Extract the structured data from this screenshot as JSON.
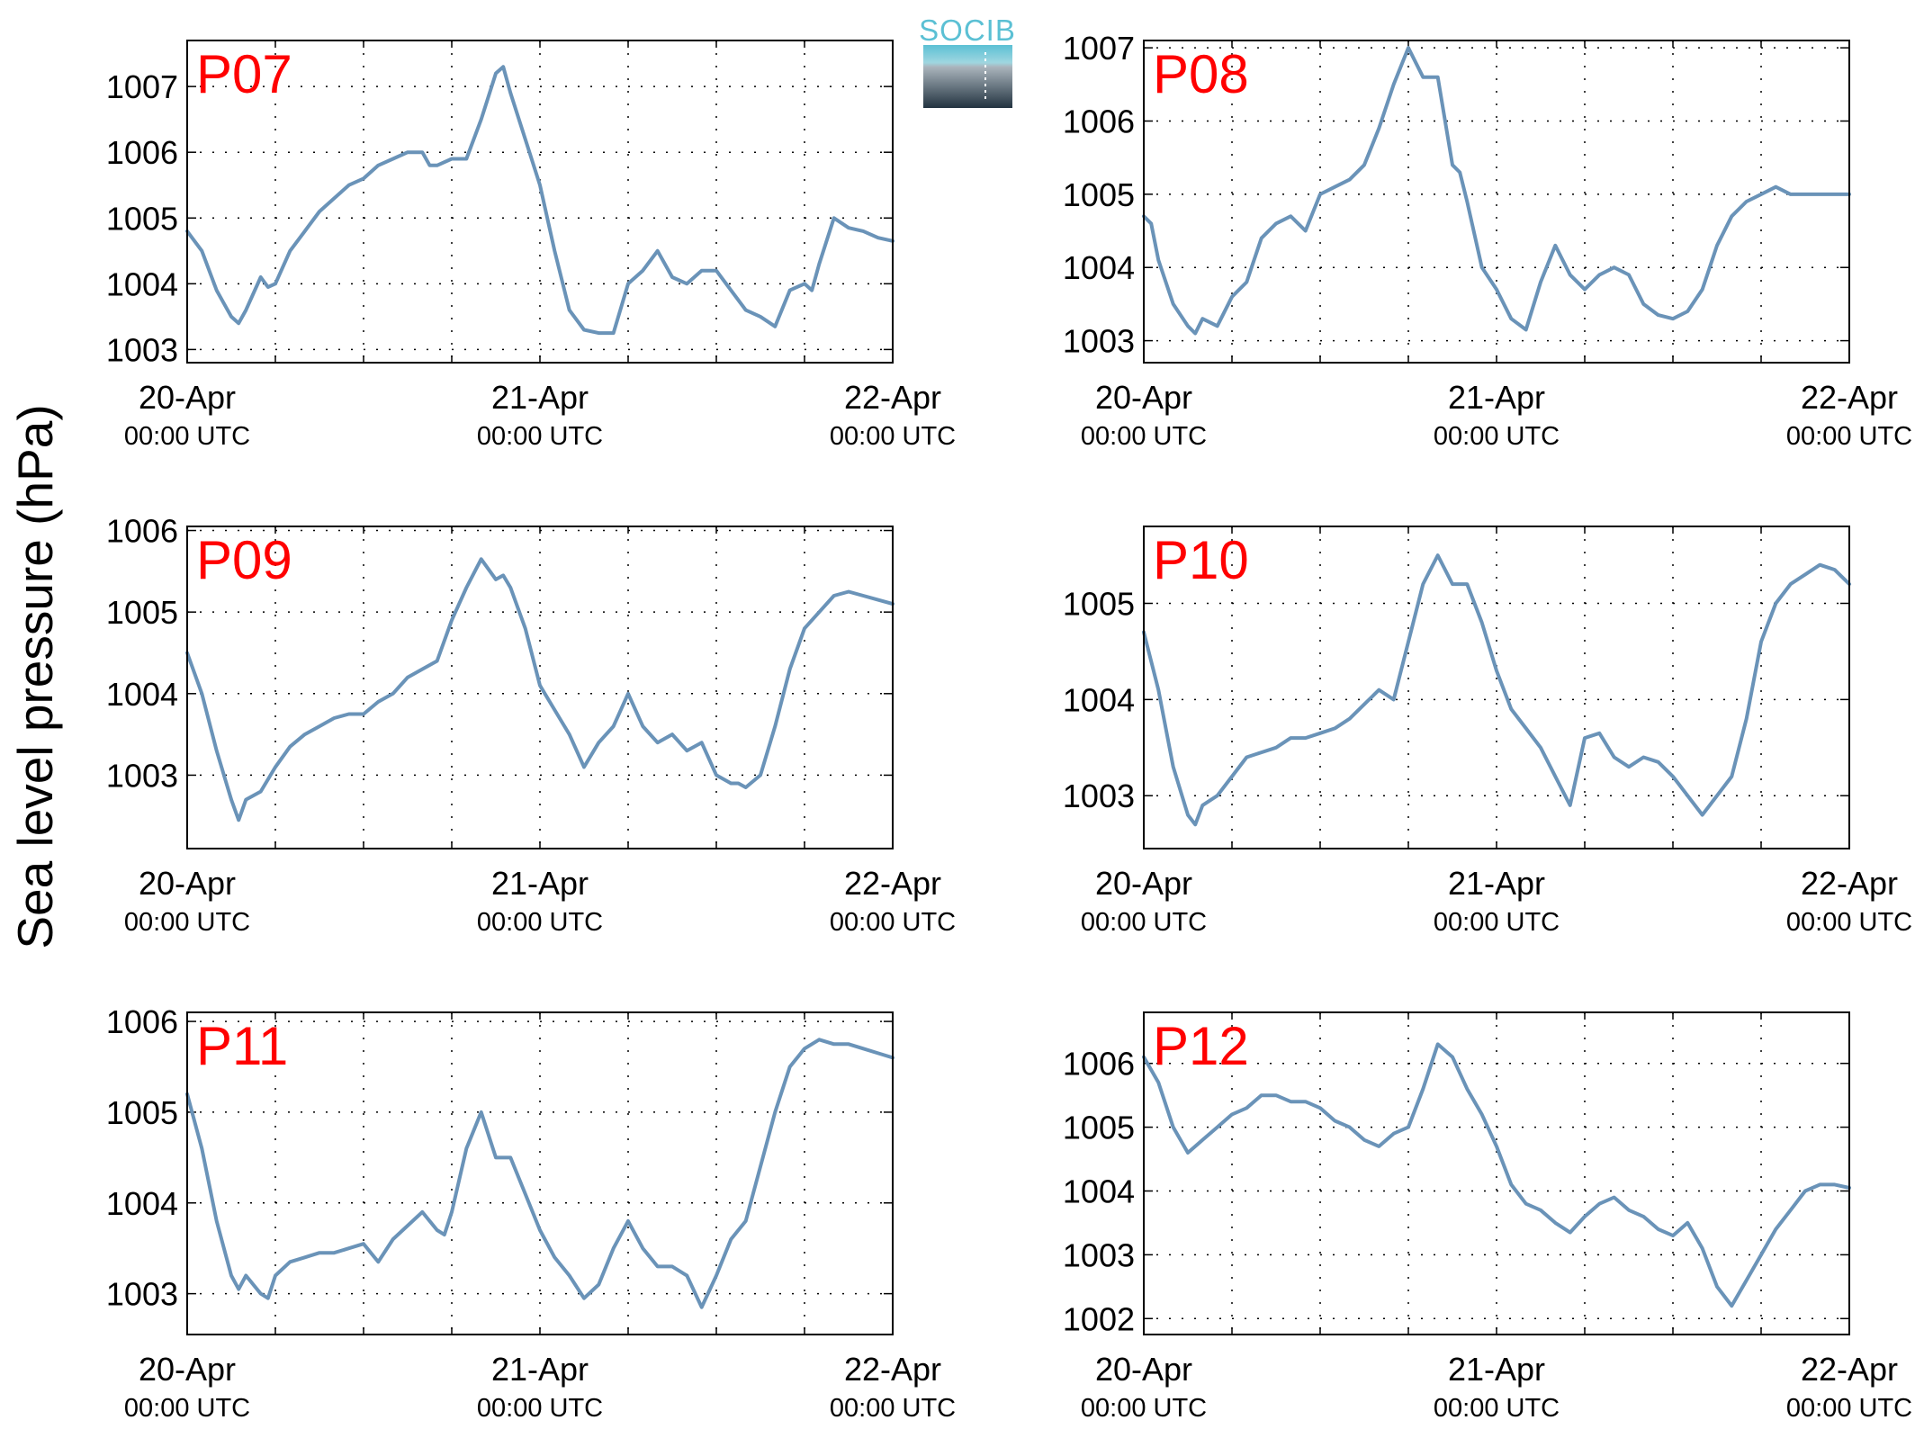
{
  "ylabel": "Sea level pressure (hPa)",
  "logo": {
    "text": "SOCIB",
    "color": "#5bc0d4"
  },
  "colors": {
    "line": "#6a93b8",
    "panel_label": "#ff0000",
    "axis": "#000000",
    "grid": "#000000"
  },
  "chart_data": [
    {
      "type": "line",
      "title": "P07",
      "xlim": [
        0,
        48
      ],
      "ylim": [
        1002.8,
        1007.7
      ],
      "yticks": [
        1003,
        1004,
        1005,
        1006,
        1007
      ],
      "yticklabels": [
        "1003",
        "1004",
        "1005",
        "1006",
        "1007"
      ],
      "xticks": [
        0,
        24,
        48
      ],
      "xticklabels": [
        "20-Apr",
        "21-Apr",
        "22-Apr"
      ],
      "xsublabels": [
        "00:00 UTC",
        "00:00 UTC",
        "00:00 UTC"
      ],
      "grid": true,
      "series": [
        {
          "x": [
            0,
            1,
            2,
            3,
            3.5,
            4,
            5,
            5.5,
            6,
            7,
            8,
            9,
            11,
            12,
            13,
            14,
            15,
            16,
            16.5,
            17,
            18,
            19,
            20,
            21,
            21.5,
            22,
            23,
            24,
            25,
            26,
            27,
            28,
            29,
            30,
            31,
            32,
            33,
            34,
            35,
            36,
            37,
            38,
            39,
            40,
            41,
            42,
            42.5,
            43,
            44,
            45,
            46,
            47,
            48
          ],
          "y": [
            1004.8,
            1004.5,
            1003.9,
            1003.5,
            1003.4,
            1003.6,
            1004.1,
            1003.95,
            1004.0,
            1004.5,
            1004.8,
            1005.1,
            1005.5,
            1005.6,
            1005.8,
            1005.9,
            1006.0,
            1006.0,
            1005.8,
            1005.8,
            1005.9,
            1005.9,
            1006.5,
            1007.2,
            1007.3,
            1006.9,
            1006.2,
            1005.5,
            1004.5,
            1003.6,
            1003.3,
            1003.25,
            1003.25,
            1004.0,
            1004.2,
            1004.5,
            1004.1,
            1004.0,
            1004.2,
            1004.2,
            1003.9,
            1003.6,
            1003.5,
            1003.35,
            1003.9,
            1004.0,
            1003.9,
            1004.3,
            1005.0,
            1004.85,
            1004.8,
            1004.7,
            1004.65
          ]
        }
      ]
    },
    {
      "type": "line",
      "title": "P08",
      "xlim": [
        0,
        48
      ],
      "ylim": [
        1002.7,
        1007.1
      ],
      "yticks": [
        1003,
        1004,
        1005,
        1006,
        1007
      ],
      "yticklabels": [
        "1003",
        "1004",
        "1005",
        "1006",
        "1007"
      ],
      "xticks": [
        0,
        24,
        48
      ],
      "xticklabels": [
        "20-Apr",
        "21-Apr",
        "22-Apr"
      ],
      "xsublabels": [
        "00:00 UTC",
        "00:00 UTC",
        "00:00 UTC"
      ],
      "grid": true,
      "series": [
        {
          "x": [
            0,
            0.5,
            1,
            2,
            3,
            3.5,
            4,
            5,
            6,
            7,
            8,
            9,
            10,
            11,
            12,
            13,
            14,
            15,
            16,
            17,
            18,
            19,
            20,
            21,
            21.5,
            22,
            23,
            24,
            25,
            26,
            27,
            28,
            29,
            30,
            31,
            32,
            33,
            34,
            35,
            36,
            37,
            38,
            39,
            40,
            41,
            42,
            43,
            44,
            45,
            46,
            47,
            48
          ],
          "y": [
            1004.7,
            1004.6,
            1004.1,
            1003.5,
            1003.2,
            1003.1,
            1003.3,
            1003.2,
            1003.6,
            1003.8,
            1004.4,
            1004.6,
            1004.7,
            1004.5,
            1005.0,
            1005.1,
            1005.2,
            1005.4,
            1005.9,
            1006.5,
            1007.0,
            1006.6,
            1006.6,
            1005.4,
            1005.3,
            1004.9,
            1004.0,
            1003.7,
            1003.3,
            1003.15,
            1003.8,
            1004.3,
            1003.9,
            1003.7,
            1003.9,
            1004.0,
            1003.9,
            1003.5,
            1003.35,
            1003.3,
            1003.4,
            1003.7,
            1004.3,
            1004.7,
            1004.9,
            1005.0,
            1005.1,
            1005.0,
            1005.0,
            1005.0,
            1005.0,
            1005.0
          ]
        }
      ]
    },
    {
      "type": "line",
      "title": "P09",
      "xlim": [
        0,
        48
      ],
      "ylim": [
        1002.1,
        1006.05
      ],
      "yticks": [
        1003,
        1004,
        1005,
        1006
      ],
      "yticklabels": [
        "1003",
        "1004",
        "1005",
        "1006"
      ],
      "xticks": [
        0,
        24,
        48
      ],
      "xticklabels": [
        "20-Apr",
        "21-Apr",
        "22-Apr"
      ],
      "xsublabels": [
        "00:00 UTC",
        "00:00 UTC",
        "00:00 UTC"
      ],
      "grid": true,
      "series": [
        {
          "x": [
            0,
            1,
            2,
            3,
            3.5,
            4,
            5,
            6,
            7,
            8,
            9,
            10,
            11,
            12,
            13,
            14,
            15,
            16,
            17,
            18,
            19,
            20,
            21,
            21.5,
            22,
            23,
            24,
            25,
            26,
            27,
            28,
            29,
            30,
            31,
            32,
            33,
            34,
            35,
            36,
            37,
            37.5,
            38,
            39,
            40,
            41,
            42,
            43,
            44,
            45,
            46,
            47,
            48
          ],
          "y": [
            1004.5,
            1004.0,
            1003.3,
            1002.7,
            1002.45,
            1002.7,
            1002.8,
            1003.1,
            1003.35,
            1003.5,
            1003.6,
            1003.7,
            1003.75,
            1003.75,
            1003.9,
            1004.0,
            1004.2,
            1004.3,
            1004.4,
            1004.9,
            1005.3,
            1005.65,
            1005.4,
            1005.45,
            1005.3,
            1004.8,
            1004.1,
            1003.8,
            1003.5,
            1003.1,
            1003.4,
            1003.6,
            1004.0,
            1003.6,
            1003.4,
            1003.5,
            1003.3,
            1003.4,
            1003.0,
            1002.9,
            1002.9,
            1002.85,
            1003.0,
            1003.6,
            1004.3,
            1004.8,
            1005.0,
            1005.2,
            1005.25,
            1005.2,
            1005.15,
            1005.1
          ]
        }
      ]
    },
    {
      "type": "line",
      "title": "P10",
      "xlim": [
        0,
        48
      ],
      "ylim": [
        1002.45,
        1005.8
      ],
      "yticks": [
        1003,
        1004,
        1005
      ],
      "yticklabels": [
        "1003",
        "1004",
        "1005"
      ],
      "xticks": [
        0,
        24,
        48
      ],
      "xticklabels": [
        "20-Apr",
        "21-Apr",
        "22-Apr"
      ],
      "xsublabels": [
        "00:00 UTC",
        "00:00 UTC",
        "00:00 UTC"
      ],
      "grid": true,
      "series": [
        {
          "x": [
            0,
            1,
            2,
            3,
            3.5,
            4,
            5,
            6,
            7,
            8,
            9,
            10,
            11,
            12,
            13,
            14,
            15,
            16,
            17,
            18,
            19,
            20,
            21,
            22,
            23,
            24,
            25,
            26,
            27,
            28,
            29,
            30,
            31,
            32,
            33,
            34,
            35,
            36,
            37,
            38,
            39,
            40,
            41,
            42,
            43,
            44,
            45,
            46,
            47,
            48
          ],
          "y": [
            1004.7,
            1004.1,
            1003.3,
            1002.8,
            1002.7,
            1002.9,
            1003.0,
            1003.2,
            1003.4,
            1003.45,
            1003.5,
            1003.6,
            1003.6,
            1003.65,
            1003.7,
            1003.8,
            1003.95,
            1004.1,
            1004.0,
            1004.6,
            1005.2,
            1005.5,
            1005.2,
            1005.2,
            1004.8,
            1004.3,
            1003.9,
            1003.7,
            1003.5,
            1003.2,
            1002.9,
            1003.6,
            1003.65,
            1003.4,
            1003.3,
            1003.4,
            1003.35,
            1003.2,
            1003.0,
            1002.8,
            1003.0,
            1003.2,
            1003.8,
            1004.6,
            1005.0,
            1005.2,
            1005.3,
            1005.4,
            1005.35,
            1005.2
          ]
        }
      ]
    },
    {
      "type": "line",
      "title": "P11",
      "xlim": [
        0,
        48
      ],
      "ylim": [
        1002.55,
        1006.1
      ],
      "yticks": [
        1003,
        1004,
        1005,
        1006
      ],
      "yticklabels": [
        "1003",
        "1004",
        "1005",
        "1006"
      ],
      "xticks": [
        0,
        24,
        48
      ],
      "xticklabels": [
        "20-Apr",
        "21-Apr",
        "22-Apr"
      ],
      "xsublabels": [
        "00:00 UTC",
        "00:00 UTC",
        "00:00 UTC"
      ],
      "grid": true,
      "series": [
        {
          "x": [
            0,
            1,
            2,
            3,
            3.5,
            4,
            5,
            5.5,
            6,
            7,
            8,
            9,
            10,
            11,
            12,
            13,
            14,
            15,
            16,
            17,
            17.5,
            18,
            19,
            20,
            21,
            22,
            23,
            24,
            25,
            26,
            27,
            28,
            29,
            30,
            31,
            32,
            33,
            34,
            35,
            36,
            37,
            38,
            39,
            40,
            41,
            42,
            43,
            44,
            45,
            46,
            47,
            48
          ],
          "y": [
            1005.2,
            1004.6,
            1003.8,
            1003.2,
            1003.05,
            1003.2,
            1003.0,
            1002.95,
            1003.2,
            1003.35,
            1003.4,
            1003.45,
            1003.45,
            1003.5,
            1003.55,
            1003.35,
            1003.6,
            1003.75,
            1003.9,
            1003.7,
            1003.65,
            1003.9,
            1004.6,
            1005.0,
            1004.5,
            1004.5,
            1004.1,
            1003.7,
            1003.4,
            1003.2,
            1002.95,
            1003.1,
            1003.5,
            1003.8,
            1003.5,
            1003.3,
            1003.3,
            1003.2,
            1002.85,
            1003.2,
            1003.6,
            1003.8,
            1004.4,
            1005.0,
            1005.5,
            1005.7,
            1005.8,
            1005.75,
            1005.75,
            1005.7,
            1005.65,
            1005.6
          ]
        }
      ]
    },
    {
      "type": "line",
      "title": "P12",
      "xlim": [
        0,
        48
      ],
      "ylim": [
        1001.75,
        1006.8
      ],
      "yticks": [
        1002,
        1003,
        1004,
        1005,
        1006
      ],
      "yticklabels": [
        "1002",
        "1003",
        "1004",
        "1005",
        "1006"
      ],
      "xticks": [
        0,
        24,
        48
      ],
      "xticklabels": [
        "20-Apr",
        "21-Apr",
        "22-Apr"
      ],
      "xsublabels": [
        "00:00 UTC",
        "00:00 UTC",
        "00:00 UTC"
      ],
      "grid": true,
      "series": [
        {
          "x": [
            0,
            1,
            2,
            3,
            4,
            5,
            6,
            7,
            8,
            9,
            10,
            11,
            12,
            13,
            14,
            15,
            16,
            17,
            18,
            19,
            20,
            21,
            22,
            23,
            24,
            25,
            26,
            27,
            28,
            29,
            30,
            31,
            32,
            33,
            34,
            35,
            36,
            37,
            38,
            39,
            40,
            41,
            42,
            43,
            44,
            45,
            46,
            47,
            48
          ],
          "y": [
            1006.1,
            1005.7,
            1005.0,
            1004.6,
            1004.8,
            1005.0,
            1005.2,
            1005.3,
            1005.5,
            1005.5,
            1005.4,
            1005.4,
            1005.3,
            1005.1,
            1005.0,
            1004.8,
            1004.7,
            1004.9,
            1005.0,
            1005.6,
            1006.3,
            1006.1,
            1005.6,
            1005.2,
            1004.7,
            1004.1,
            1003.8,
            1003.7,
            1003.5,
            1003.35,
            1003.6,
            1003.8,
            1003.9,
            1003.7,
            1003.6,
            1003.4,
            1003.3,
            1003.5,
            1003.1,
            1002.5,
            1002.2,
            1002.6,
            1003.0,
            1003.4,
            1003.7,
            1004.0,
            1004.1,
            1004.1,
            1004.05
          ]
        }
      ]
    }
  ]
}
